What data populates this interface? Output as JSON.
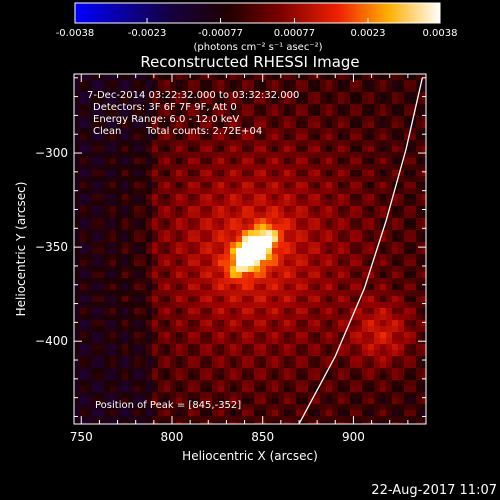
{
  "colorbar": {
    "tick_labels": [
      "-0.0038",
      "-0.0023",
      "-0.00077",
      "0.00077",
      "0.0023",
      "0.0038"
    ],
    "range": [
      -0.0038,
      0.0038
    ],
    "units_label": "(photons cm⁻² s⁻¹ asec⁻²)"
  },
  "chart_data": {
    "type": "heatmap",
    "title": "Reconstructed RHESSI Image",
    "xlabel": "Heliocentric X (arcsec)",
    "ylabel": "Heliocentric Y (arcsec)",
    "xlim": [
      746,
      940
    ],
    "ylim": [
      -444,
      -258
    ],
    "x_ticks": [
      750,
      800,
      850,
      900
    ],
    "y_ticks": [
      -300,
      -350,
      -400
    ],
    "annotations": {
      "time_range": "7-Dec-2014 03:22:32.000 to 03:32:32.000",
      "detectors": "Detectors: 3F 6F 7F 9F, Att 0",
      "energy_range": "Energy Range: 6.0 - 12.0 keV",
      "method": "Clean",
      "total_counts": "Total counts: 2.72E+04",
      "peak_position": "Position of Peak = [845,-352]"
    },
    "peak": {
      "x": 845,
      "y": -352
    },
    "secondary_source": {
      "x": 916,
      "y": -396
    },
    "colormap": [
      "#0000ff",
      "#000000",
      "#ff2000",
      "#ffd000",
      "#ffffff"
    ],
    "limb_curve": [
      [
        870,
        -444
      ],
      [
        890,
        -408
      ],
      [
        906,
        -372
      ],
      [
        918,
        -336
      ],
      [
        929,
        -298
      ],
      [
        938,
        -260
      ]
    ]
  },
  "footer": {
    "timestamp": "22-Aug-2017 11:07"
  }
}
